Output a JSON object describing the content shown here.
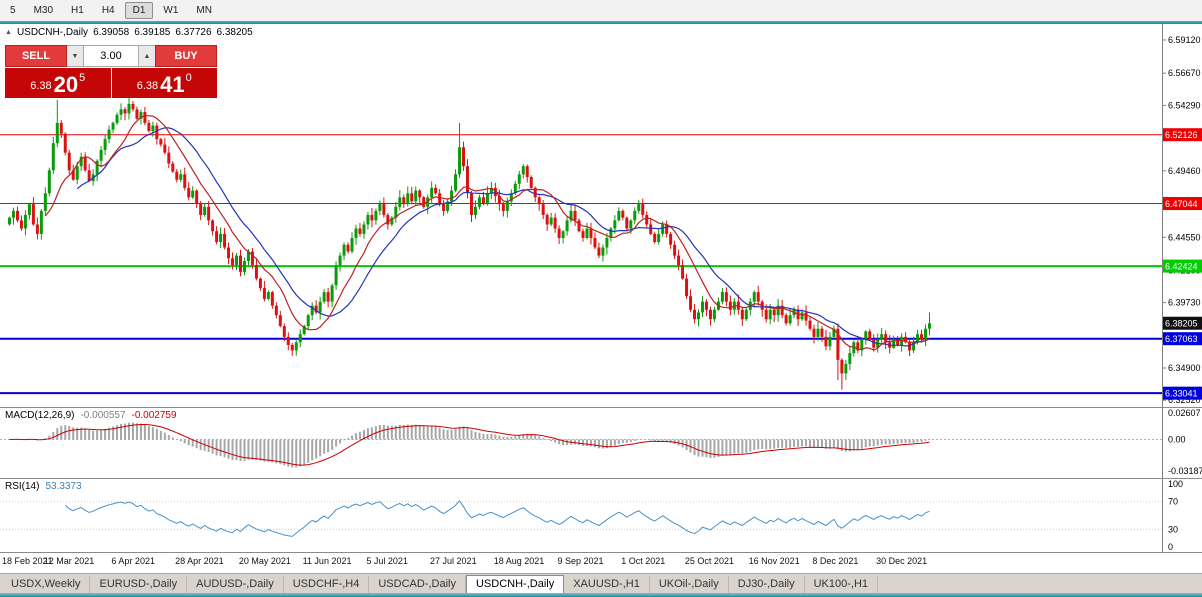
{
  "toolbar": {
    "timeframes": [
      {
        "label": "5",
        "active": false
      },
      {
        "label": "M30",
        "active": false
      },
      {
        "label": "H1",
        "active": false
      },
      {
        "label": "H4",
        "active": false
      },
      {
        "label": "D1",
        "active": true
      },
      {
        "label": "W1",
        "active": false
      },
      {
        "label": "MN",
        "active": false
      }
    ]
  },
  "chart": {
    "title": "USDCNH-,Daily",
    "ohlc": {
      "open": "6.39058",
      "high": "6.39185",
      "low": "6.37726",
      "close": "6.38205"
    }
  },
  "icons": {
    "one_click_toggle": "▲",
    "volume_down": "▼",
    "volume_up": "▲"
  },
  "trade_panel": {
    "sell_label": "SELL",
    "buy_label": "BUY",
    "volume": "3.00",
    "sell_price": {
      "prefix": "6.38",
      "big": "20",
      "sup": "5"
    },
    "buy_price": {
      "prefix": "6.38",
      "big": "41",
      "sup": "0"
    }
  },
  "levels": [
    {
      "value": 6.52126,
      "label": "6.52126",
      "color": "#ee0000",
      "width": 1
    },
    {
      "value": 6.47044,
      "label": "6.47044",
      "color": "#ee0000",
      "width": 1
    },
    {
      "value": 6.42424,
      "label": "6.42424",
      "color": "#00cc00",
      "width": 2
    },
    {
      "value": 6.37063,
      "label": "6.37063",
      "color": "#0000dd",
      "width": 2
    },
    {
      "value": 6.33041,
      "label": "6.33041",
      "color": "#0000dd",
      "width": 2
    }
  ],
  "current_price": {
    "value": 6.38205,
    "label": "6.38205",
    "color": "#111111"
  },
  "axis": {
    "price_ticks": [
      {
        "v": 6.5912,
        "label": "6.59120"
      },
      {
        "v": 6.5667,
        "label": "6.56670"
      },
      {
        "v": 6.5429,
        "label": "6.54290"
      },
      {
        "v": 6.5191,
        "label": "6.51910"
      },
      {
        "v": 6.4946,
        "label": "6.49460"
      },
      {
        "v": 6.4701,
        "label": "6.47010"
      },
      {
        "v": 6.4455,
        "label": "6.44550"
      },
      {
        "v": 6.421,
        "label": "6.42100"
      },
      {
        "v": 6.3973,
        "label": "6.39730"
      },
      {
        "v": 6.3728,
        "label": "6.37280"
      },
      {
        "v": 6.349,
        "label": "6.34900"
      },
      {
        "v": 6.3252,
        "label": "6.32520"
      }
    ],
    "dates": [
      {
        "label": "18 Feb 2021",
        "i": 0
      },
      {
        "label": "12 Mar 2021",
        "i": 16
      },
      {
        "label": "6 Apr 2021",
        "i": 33
      },
      {
        "label": "28 Apr 2021",
        "i": 49
      },
      {
        "label": "20 May 2021",
        "i": 65
      },
      {
        "label": "11 Jun 2021",
        "i": 81
      },
      {
        "label": "5 Jul 2021",
        "i": 97
      },
      {
        "label": "27 Jul 2021",
        "i": 113
      },
      {
        "label": "18 Aug 2021",
        "i": 129
      },
      {
        "label": "9 Sep 2021",
        "i": 145
      },
      {
        "label": "1 Oct 2021",
        "i": 161
      },
      {
        "label": "25 Oct 2021",
        "i": 177
      },
      {
        "label": "16 Nov 2021",
        "i": 193
      },
      {
        "label": "8 Dec 2021",
        "i": 209
      },
      {
        "label": "30 Dec 2021",
        "i": 225
      }
    ]
  },
  "macd": {
    "name": "MACD(12,26,9)",
    "main_value": "-0.000557",
    "signal_value": "-0.002759",
    "axis": [
      {
        "v": 0.02607,
        "label": "0.02607"
      },
      {
        "v": 0,
        "label": "0.00"
      },
      {
        "v": -0.03187,
        "label": "-0.03187"
      }
    ],
    "scale": {
      "max": 0.0287,
      "min": -0.0355
    },
    "histogram_color": "#a6a6a6",
    "signal_color": "#cc0000"
  },
  "rsi": {
    "name": "RSI(14)",
    "value": "53.3373",
    "line_color": "#4a90c8",
    "levels": [
      {
        "v": 100,
        "label": "100"
      },
      {
        "v": 70,
        "label": "70"
      },
      {
        "v": 30,
        "label": "30"
      },
      {
        "v": 0,
        "label": "0"
      }
    ],
    "guide_levels": [
      70,
      30
    ]
  },
  "tabs": [
    {
      "label": "USDX,Weekly",
      "active": false
    },
    {
      "label": "EURUSD-,Daily",
      "active": false
    },
    {
      "label": "AUDUSD-,Daily",
      "active": false
    },
    {
      "label": "USDCHF-,H4",
      "active": false
    },
    {
      "label": "USDCAD-,Daily",
      "active": false
    },
    {
      "label": "USDCNH-,Daily",
      "active": true
    },
    {
      "label": "XAUUSD-,H1",
      "active": false
    },
    {
      "label": "UKOil-,Daily",
      "active": false
    },
    {
      "label": "DJ30-,Daily",
      "active": false
    },
    {
      "label": "UK100-,H1",
      "active": false
    }
  ],
  "chart_data": {
    "type": "candlestick",
    "symbol": "USDCNH-",
    "timeframe": "Daily",
    "up_color": "#0a9b0a",
    "down_color": "#dd1111",
    "ma_fast": {
      "period": 10,
      "color": "#bb2222"
    },
    "ma_slow": {
      "period": 18,
      "color": "#2233bb"
    },
    "ylim": [
      6.318,
      6.603
    ],
    "first_open": 6.455,
    "closes": [
      6.46,
      6.465,
      6.458,
      6.452,
      6.462,
      6.47,
      6.455,
      6.448,
      6.465,
      6.478,
      6.495,
      6.515,
      6.53,
      6.522,
      6.508,
      6.495,
      6.488,
      6.498,
      6.505,
      6.495,
      6.487,
      6.492,
      6.502,
      6.51,
      6.518,
      6.525,
      6.53,
      6.536,
      6.54,
      6.537,
      6.544,
      6.54,
      6.533,
      6.538,
      6.53,
      6.524,
      6.528,
      6.518,
      6.514,
      6.508,
      6.5,
      6.494,
      6.488,
      6.492,
      6.482,
      6.475,
      6.48,
      6.47,
      6.462,
      6.468,
      6.458,
      6.45,
      6.442,
      6.448,
      6.438,
      6.43,
      6.425,
      6.432,
      6.42,
      6.428,
      6.435,
      6.425,
      6.415,
      6.408,
      6.4,
      6.405,
      6.395,
      6.388,
      6.38,
      6.372,
      6.366,
      6.362,
      6.368,
      6.374,
      6.38,
      6.388,
      6.395,
      6.39,
      6.398,
      6.405,
      6.398,
      6.41,
      6.425,
      6.432,
      6.44,
      6.435,
      6.445,
      6.452,
      6.448,
      6.455,
      6.462,
      6.458,
      6.465,
      6.47,
      6.462,
      6.455,
      6.46,
      6.468,
      6.475,
      6.47,
      6.478,
      6.472,
      6.48,
      6.475,
      6.468,
      6.475,
      6.482,
      6.478,
      6.47,
      6.465,
      6.472,
      6.48,
      6.492,
      6.512,
      6.498,
      6.478,
      6.462,
      6.468,
      6.475,
      6.47,
      6.478,
      6.482,
      6.476,
      6.47,
      6.465,
      6.472,
      6.478,
      6.485,
      6.492,
      6.498,
      6.49,
      6.482,
      6.475,
      6.47,
      6.462,
      6.455,
      6.46,
      6.452,
      6.445,
      6.45,
      6.458,
      6.465,
      6.458,
      6.45,
      6.445,
      6.452,
      6.445,
      6.438,
      6.432,
      6.438,
      6.445,
      6.452,
      6.458,
      6.465,
      6.46,
      6.452,
      6.458,
      6.465,
      6.47,
      6.462,
      6.455,
      6.448,
      6.442,
      6.448,
      6.455,
      6.448,
      6.44,
      6.432,
      6.425,
      6.415,
      6.402,
      6.392,
      6.385,
      6.39,
      6.398,
      6.392,
      6.385,
      6.392,
      6.398,
      6.405,
      6.398,
      6.392,
      6.398,
      6.392,
      6.385,
      6.392,
      6.398,
      6.405,
      6.398,
      6.392,
      6.385,
      6.392,
      6.388,
      6.395,
      6.388,
      6.382,
      6.388,
      6.392,
      6.385,
      6.39,
      6.384,
      6.378,
      6.372,
      6.378,
      6.372,
      6.365,
      6.372,
      6.378,
      6.355,
      6.345,
      6.352,
      6.36,
      6.368,
      6.362,
      6.37,
      6.376,
      6.37,
      6.364,
      6.37,
      6.374,
      6.368,
      6.364,
      6.37,
      6.366,
      6.372,
      6.368,
      6.362,
      6.368,
      6.374,
      6.37,
      6.378,
      6.382
    ],
    "wick_overrides": {
      "12": {
        "h": 6.547
      },
      "30": {
        "h": 6.549
      },
      "71": {
        "l": 6.358
      },
      "113": {
        "h": 6.53
      },
      "208": {
        "l": 6.34
      },
      "209": {
        "l": 6.333
      },
      "231": {
        "h": 6.39
      }
    }
  }
}
